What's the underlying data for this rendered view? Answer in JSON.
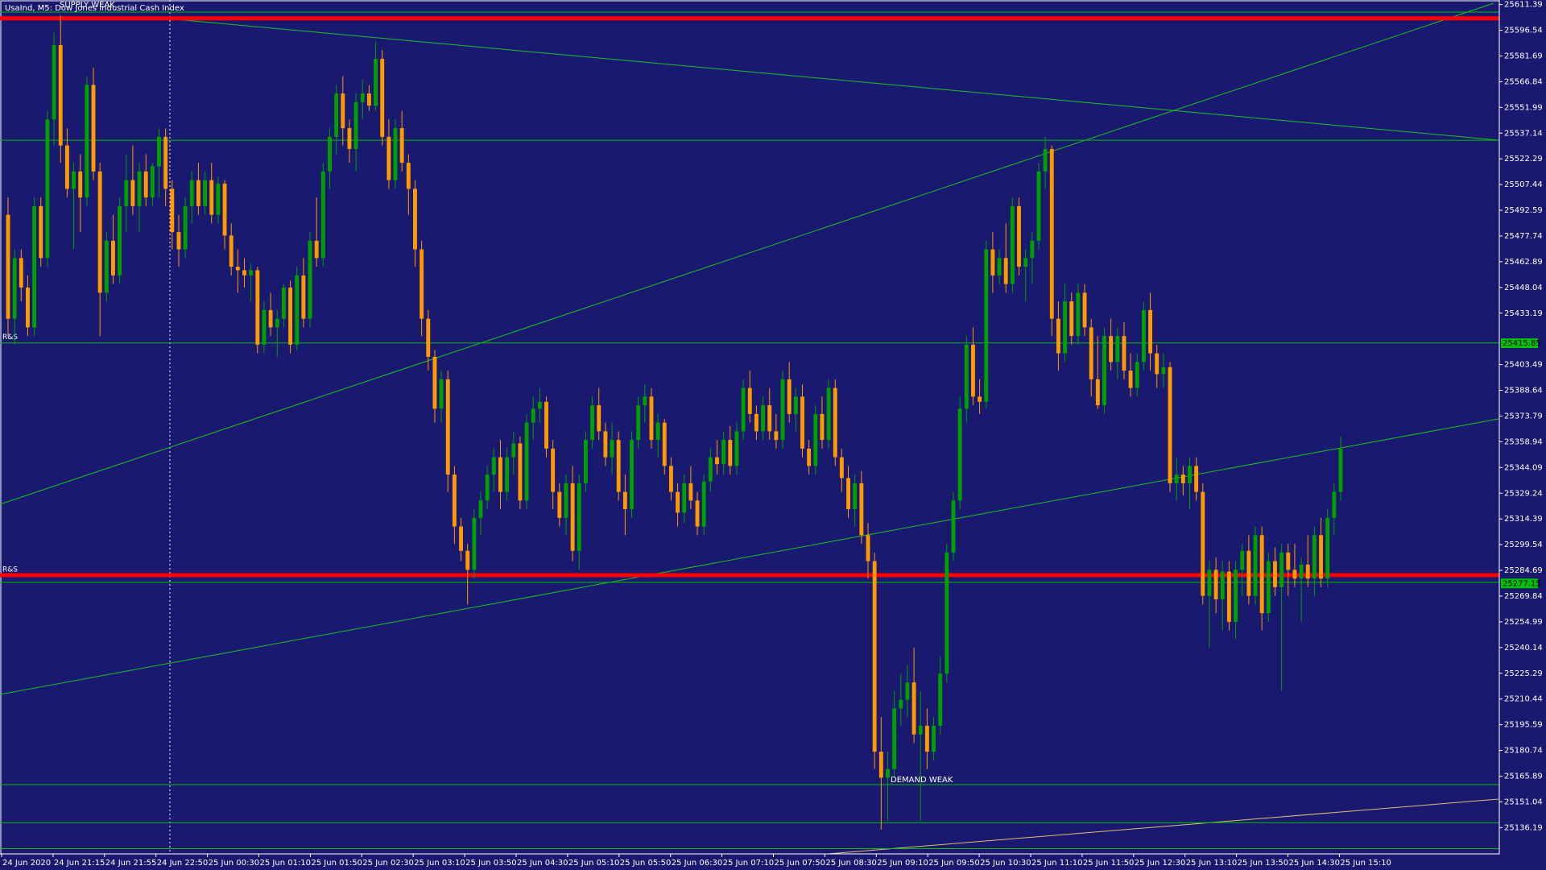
{
  "chart_data": {
    "type": "candlestick",
    "title": "UsaInd, M5:  Dow Jones Industrial Cash Index",
    "up_color": "#00a000",
    "down_color": "#ff9900",
    "background": "#191970",
    "ylim": [
      25121,
      25614
    ],
    "yticks": [
      25611.39,
      25596.54,
      25581.69,
      25566.84,
      25551.99,
      25537.14,
      25522.29,
      25507.44,
      25492.59,
      25477.74,
      25462.89,
      25448.04,
      25433.19,
      25403.49,
      25388.64,
      25373.79,
      25358.94,
      25344.09,
      25329.24,
      25314.39,
      25299.54,
      25284.69,
      25269.84,
      25254.99,
      25240.14,
      25225.29,
      25210.44,
      25195.59,
      25180.74,
      25165.89,
      25151.04,
      25136.19
    ],
    "time_labels": [
      "24 Jun 2020",
      "24 Jun 21:15",
      "24 Jun 21:55",
      "24 Jun 22:50",
      "25 Jun 00:30",
      "25 Jun 01:10",
      "25 Jun 01:50",
      "25 Jun 02:30",
      "25 Jun 03:10",
      "25 Jun 03:50",
      "25 Jun 04:30",
      "25 Jun 05:10",
      "25 Jun 05:50",
      "25 Jun 06:30",
      "25 Jun 07:10",
      "25 Jun 07:50",
      "25 Jun 08:30",
      "25 Jun 09:10",
      "25 Jun 09:50",
      "25 Jun 10:30",
      "25 Jun 11:10",
      "25 Jun 11:50",
      "25 Jun 12:30",
      "25 Jun 13:10",
      "25 Jun 13:50",
      "25 Jun 14:30",
      "25 Jun 15:10"
    ],
    "levels": [
      {
        "value": 25607,
        "color": "#00c000",
        "style": "thin"
      },
      {
        "value": 25603.4,
        "color": "#ff0000",
        "style": "thick"
      },
      {
        "value": 25533,
        "color": "#00c000",
        "style": "thin"
      },
      {
        "value": 25416,
        "color": "#00c000",
        "style": "thin",
        "label": "R&S"
      },
      {
        "value": 25281.9,
        "color": "#ff0000",
        "style": "thick",
        "label": "R&S"
      },
      {
        "value": 25277.8,
        "color": "#00c000",
        "style": "thin"
      },
      {
        "value": 25161,
        "color": "#00c000",
        "style": "thin"
      },
      {
        "value": 25139,
        "color": "#00c000",
        "style": "thin"
      },
      {
        "value": 25124,
        "color": "#00c000",
        "style": "thin"
      }
    ],
    "price_markers": [
      25415.85,
      25277.15
    ],
    "annotations": [
      "SUPPLY WEAK",
      "DEMAND WEAK"
    ],
    "candles": [
      [
        25490,
        25500,
        25420,
        25430
      ],
      [
        25430,
        25470,
        25415,
        25465
      ],
      [
        25465,
        25470,
        25440,
        25448
      ],
      [
        25448,
        25455,
        25420,
        25425
      ],
      [
        25425,
        25500,
        25420,
        25495
      ],
      [
        25495,
        25500,
        25460,
        25465
      ],
      [
        25465,
        25550,
        25460,
        25545
      ],
      [
        25545,
        25595,
        25530,
        25588
      ],
      [
        25588,
        25605,
        25520,
        25530
      ],
      [
        25530,
        25540,
        25500,
        25505
      ],
      [
        25505,
        25520,
        25470,
        25515
      ],
      [
        25515,
        25525,
        25480,
        25500
      ],
      [
        25500,
        25570,
        25495,
        25565
      ],
      [
        25565,
        25575,
        25510,
        25515
      ],
      [
        25515,
        25520,
        25420,
        25445
      ],
      [
        25445,
        25480,
        25440,
        25475
      ],
      [
        25475,
        25490,
        25450,
        25455
      ],
      [
        25455,
        25500,
        25450,
        25495
      ],
      [
        25495,
        25525,
        25480,
        25510
      ],
      [
        25510,
        25530,
        25490,
        25495
      ],
      [
        25495,
        25520,
        25480,
        25515
      ],
      [
        25515,
        25525,
        25495,
        25500
      ],
      [
        25500,
        25520,
        25495,
        25518
      ],
      [
        25518,
        25540,
        25500,
        25535
      ],
      [
        25535,
        25540,
        25495,
        25505
      ],
      [
        25505,
        25510,
        25470,
        25480
      ],
      [
        25480,
        25490,
        25460,
        25470
      ],
      [
        25470,
        25500,
        25465,
        25495
      ],
      [
        25495,
        25515,
        25485,
        25510
      ],
      [
        25510,
        25520,
        25490,
        25495
      ],
      [
        25495,
        25515,
        25490,
        25510
      ],
      [
        25510,
        25520,
        25485,
        25490
      ],
      [
        25490,
        25512,
        25485,
        25508
      ],
      [
        25508,
        25510,
        25470,
        25478
      ],
      [
        25478,
        25485,
        25455,
        25460
      ],
      [
        25460,
        25470,
        25445,
        25458
      ],
      [
        25458,
        25465,
        25448,
        25455
      ],
      [
        25455,
        25462,
        25440,
        25458
      ],
      [
        25458,
        25460,
        25410,
        25415
      ],
      [
        25415,
        25440,
        25410,
        25435
      ],
      [
        25435,
        25445,
        25420,
        25425
      ],
      [
        25425,
        25435,
        25408,
        25430
      ],
      [
        25430,
        25450,
        25425,
        25448
      ],
      [
        25448,
        25452,
        25410,
        25415
      ],
      [
        25415,
        25460,
        25412,
        25455
      ],
      [
        25455,
        25465,
        25425,
        25430
      ],
      [
        25430,
        25480,
        25425,
        25475
      ],
      [
        25475,
        25500,
        25460,
        25465
      ],
      [
        25465,
        25520,
        25460,
        25515
      ],
      [
        25515,
        25540,
        25505,
        25535
      ],
      [
        25535,
        25565,
        25525,
        25560
      ],
      [
        25560,
        25570,
        25530,
        25540
      ],
      [
        25540,
        25545,
        25520,
        25528
      ],
      [
        25528,
        25560,
        25515,
        25555
      ],
      [
        25555,
        25568,
        25545,
        25560
      ],
      [
        25560,
        25565,
        25550,
        25553
      ],
      [
        25553,
        25590,
        25550,
        25580
      ],
      [
        25580,
        25585,
        25530,
        25535
      ],
      [
        25535,
        25545,
        25505,
        25510
      ],
      [
        25510,
        25545,
        25505,
        25540
      ],
      [
        25540,
        25550,
        25515,
        25520
      ],
      [
        25520,
        25525,
        25490,
        25505
      ],
      [
        25505,
        25510,
        25460,
        25470
      ],
      [
        25470,
        25475,
        25420,
        25430
      ],
      [
        25430,
        25435,
        25400,
        25408
      ],
      [
        25408,
        25412,
        25370,
        25378
      ],
      [
        25378,
        25400,
        25370,
        25395
      ],
      [
        25395,
        25400,
        25330,
        25340
      ],
      [
        25340,
        25345,
        25300,
        25310
      ],
      [
        25310,
        25315,
        25290,
        25296
      ],
      [
        25296,
        25300,
        25265,
        25285
      ],
      [
        25285,
        25320,
        25280,
        25315
      ],
      [
        25315,
        25330,
        25305,
        25325
      ],
      [
        25325,
        25345,
        25320,
        25340
      ],
      [
        25340,
        25355,
        25330,
        25350
      ],
      [
        25350,
        25360,
        25320,
        25330
      ],
      [
        25330,
        25355,
        25325,
        25350
      ],
      [
        25350,
        25365,
        25340,
        25358
      ],
      [
        25358,
        25362,
        25320,
        25325
      ],
      [
        25325,
        25375,
        25320,
        25370
      ],
      [
        25370,
        25385,
        25360,
        25378
      ],
      [
        25378,
        25390,
        25370,
        25382
      ],
      [
        25382,
        25385,
        25350,
        25355
      ],
      [
        25355,
        25360,
        25320,
        25330
      ],
      [
        25330,
        25335,
        25310,
        25315
      ],
      [
        25315,
        25340,
        25305,
        25335
      ],
      [
        25335,
        25345,
        25290,
        25296
      ],
      [
        25296,
        25340,
        25285,
        25335
      ],
      [
        25335,
        25365,
        25330,
        25360
      ],
      [
        25360,
        25385,
        25355,
        25380
      ],
      [
        25380,
        25390,
        25360,
        25365
      ],
      [
        25365,
        25370,
        25345,
        25350
      ],
      [
        25350,
        25370,
        25340,
        25360
      ],
      [
        25360,
        25365,
        25325,
        25330
      ],
      [
        25330,
        25340,
        25305,
        25320
      ],
      [
        25320,
        25365,
        25315,
        25360
      ],
      [
        25360,
        25385,
        25355,
        25380
      ],
      [
        25380,
        25392,
        25370,
        25385
      ],
      [
        25385,
        25390,
        25355,
        25360
      ],
      [
        25360,
        25375,
        25350,
        25370
      ],
      [
        25370,
        25372,
        25340,
        25345
      ],
      [
        25345,
        25350,
        25325,
        25330
      ],
      [
        25330,
        25335,
        25310,
        25318
      ],
      [
        25318,
        25340,
        25312,
        25335
      ],
      [
        25335,
        25345,
        25320,
        25325
      ],
      [
        25325,
        25330,
        25305,
        25310
      ],
      [
        25310,
        25340,
        25305,
        25336
      ],
      [
        25336,
        25355,
        25330,
        25350
      ],
      [
        25350,
        25360,
        25340,
        25346
      ],
      [
        25346,
        25365,
        25340,
        25360
      ],
      [
        25360,
        25368,
        25340,
        25345
      ],
      [
        25345,
        25370,
        25340,
        25365
      ],
      [
        25365,
        25395,
        25360,
        25390
      ],
      [
        25390,
        25400,
        25370,
        25375
      ],
      [
        25375,
        25380,
        25360,
        25365
      ],
      [
        25365,
        25385,
        25360,
        25380
      ],
      [
        25380,
        25390,
        25360,
        25365
      ],
      [
        25365,
        25375,
        25355,
        25360
      ],
      [
        25360,
        25400,
        25355,
        25395
      ],
      [
        25395,
        25405,
        25370,
        25375
      ],
      [
        25375,
        25390,
        25365,
        25385
      ],
      [
        25385,
        25392,
        25350,
        25355
      ],
      [
        25355,
        25360,
        25340,
        25345
      ],
      [
        25345,
        25380,
        25340,
        25375
      ],
      [
        25375,
        25385,
        25355,
        25360
      ],
      [
        25360,
        25395,
        25355,
        25390
      ],
      [
        25390,
        25395,
        25345,
        25350
      ],
      [
        25350,
        25355,
        25330,
        25338
      ],
      [
        25338,
        25345,
        25315,
        25320
      ],
      [
        25320,
        25340,
        25310,
        25335
      ],
      [
        25335,
        25342,
        25300,
        25305
      ],
      [
        25305,
        25312,
        25280,
        25290
      ],
      [
        25290,
        25295,
        25170,
        25180
      ],
      [
        25180,
        25200,
        25135,
        25165
      ],
      [
        25165,
        25180,
        25140,
        25170
      ],
      [
        25170,
        25215,
        25165,
        25205
      ],
      [
        25205,
        25225,
        25195,
        25210
      ],
      [
        25210,
        25230,
        25200,
        25220
      ],
      [
        25220,
        25240,
        25185,
        25190
      ],
      [
        25190,
        25215,
        25140,
        25195
      ],
      [
        25195,
        25205,
        25170,
        25180
      ],
      [
        25180,
        25200,
        25175,
        25195
      ],
      [
        25195,
        25235,
        25190,
        25225
      ],
      [
        25225,
        25300,
        25220,
        25295
      ],
      [
        25295,
        25330,
        25290,
        25325
      ],
      [
        25325,
        25385,
        25320,
        25378
      ],
      [
        25378,
        25420,
        25370,
        25415
      ],
      [
        25415,
        25425,
        25380,
        25385
      ],
      [
        25385,
        25395,
        25375,
        25382
      ],
      [
        25382,
        25475,
        25378,
        25470
      ],
      [
        25470,
        25480,
        25445,
        25455
      ],
      [
        25455,
        25470,
        25450,
        25465
      ],
      [
        25465,
        25485,
        25445,
        25450
      ],
      [
        25450,
        25500,
        25445,
        25495
      ],
      [
        25495,
        25500,
        25455,
        25460
      ],
      [
        25460,
        25470,
        25440,
        25465
      ],
      [
        25465,
        25480,
        25450,
        25475
      ],
      [
        25475,
        25520,
        25470,
        25515
      ],
      [
        25515,
        25535,
        25505,
        25528
      ],
      [
        25528,
        25530,
        25420,
        25430
      ],
      [
        25430,
        25440,
        25400,
        25410
      ],
      [
        25410,
        25450,
        25405,
        25440
      ],
      [
        25440,
        25445,
        25415,
        25420
      ],
      [
        25420,
        25450,
        25415,
        25445
      ],
      [
        25445,
        25450,
        25420,
        25425
      ],
      [
        25425,
        25430,
        25385,
        25395
      ],
      [
        25395,
        25420,
        25378,
        25380
      ],
      [
        25380,
        25425,
        25375,
        25420
      ],
      [
        25420,
        25430,
        25400,
        25405
      ],
      [
        25405,
        25425,
        25395,
        25420
      ],
      [
        25420,
        25428,
        25395,
        25400
      ],
      [
        25400,
        25410,
        25385,
        25390
      ],
      [
        25390,
        25410,
        25385,
        25405
      ],
      [
        25405,
        25440,
        25400,
        25435
      ],
      [
        25435,
        25445,
        25400,
        25410
      ],
      [
        25410,
        25415,
        25390,
        25398
      ],
      [
        25398,
        25410,
        25390,
        25402
      ],
      [
        25402,
        25405,
        25330,
        25335
      ],
      [
        25335,
        25350,
        25325,
        25340
      ],
      [
        25340,
        25345,
        25328,
        25335
      ],
      [
        25335,
        25350,
        25320,
        25345
      ],
      [
        25345,
        25350,
        25325,
        25330
      ],
      [
        25330,
        25335,
        25265,
        25270
      ],
      [
        25270,
        25290,
        25240,
        25285
      ],
      [
        25285,
        25292,
        25260,
        25268
      ],
      [
        25268,
        25290,
        25250,
        25284
      ],
      [
        25284,
        25290,
        25250,
        25255
      ],
      [
        25255,
        25290,
        25245,
        25285
      ],
      [
        25285,
        25300,
        25270,
        25296
      ],
      [
        25296,
        25305,
        25265,
        25270
      ],
      [
        25270,
        25310,
        25265,
        25305
      ],
      [
        25305,
        25310,
        25250,
        25260
      ],
      [
        25260,
        25295,
        25255,
        25290
      ],
      [
        25290,
        25298,
        25270,
        25275
      ],
      [
        25275,
        25300,
        25215,
        25295
      ],
      [
        25295,
        25300,
        25270,
        25285
      ],
      [
        25285,
        25300,
        25275,
        25280
      ],
      [
        25280,
        25292,
        25255,
        25288
      ],
      [
        25288,
        25305,
        25275,
        25280
      ],
      [
        25280,
        25310,
        25270,
        25305
      ],
      [
        25305,
        25315,
        25275,
        25280
      ],
      [
        25280,
        25320,
        25275,
        25315
      ],
      [
        25315,
        25335,
        25305,
        25330
      ],
      [
        25330,
        25362,
        25325,
        25355
      ]
    ]
  }
}
